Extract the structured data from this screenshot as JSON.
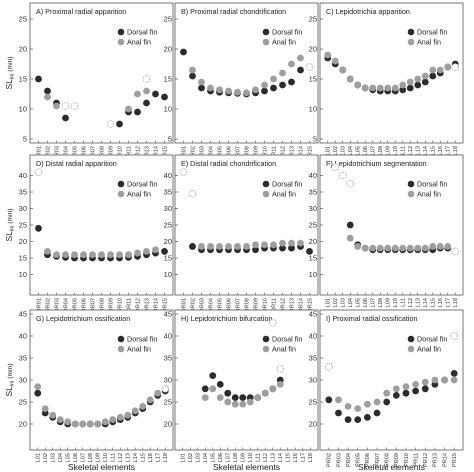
{
  "chart_data": [
    {
      "type": "scatter",
      "title": "A) Proximal radial apparition",
      "ylim": [
        5,
        27
      ],
      "yticks": [
        5,
        10,
        15,
        20,
        25
      ],
      "categories": [
        "PR01",
        "PR02",
        "PR03",
        "PR04",
        "PR05",
        "PR06",
        "PR07",
        "PR08",
        "PR09",
        "PR10",
        "PR11",
        "PR12",
        "PR13",
        "PR14",
        "PR15"
      ],
      "legend": [
        "Dorsal fin",
        "Anal fin"
      ],
      "series": [
        {
          "name": "Dorsal fin",
          "values": [
            15,
            13,
            11,
            8.5,
            null,
            null,
            null,
            null,
            null,
            7.5,
            9.5,
            9.5,
            11,
            12.5,
            12
          ]
        },
        {
          "name": "Anal fin",
          "values": [
            null,
            12,
            10.5,
            null,
            null,
            null,
            null,
            null,
            null,
            null,
            10,
            12.5,
            13,
            null,
            null
          ]
        },
        {
          "name": "",
          "values": [
            null,
            null,
            null,
            10.5,
            10.5,
            null,
            null,
            null,
            7.5,
            null,
            null,
            null,
            15,
            null,
            null
          ]
        }
      ]
    },
    {
      "type": "scatter",
      "title": "B) Proximal radial chondrification",
      "ylim": [
        5,
        27
      ],
      "yticks": [
        5,
        10,
        15,
        20,
        25
      ],
      "categories": [
        "PR01",
        "PR02",
        "PR03",
        "PR04",
        "PR05",
        "PR06",
        "PR07",
        "PR08",
        "PR09",
        "PR10",
        "PR11",
        "PR12",
        "PR13",
        "PR14",
        "PR15"
      ],
      "legend": [
        "Dorsal fin",
        "Anal fin"
      ],
      "series": [
        {
          "name": "Dorsal fin",
          "values": [
            19.5,
            15.5,
            13.5,
            13,
            12.8,
            12.7,
            12.6,
            12.5,
            12.7,
            13,
            13.5,
            14,
            14.5,
            16.5,
            null
          ]
        },
        {
          "name": "Anal fin",
          "values": [
            null,
            16.5,
            14.5,
            13.5,
            13.2,
            13,
            12.8,
            12.7,
            13.2,
            14,
            15,
            16,
            17.5,
            18.5,
            null
          ]
        },
        {
          "name": "",
          "values": [
            null,
            null,
            null,
            null,
            null,
            null,
            null,
            null,
            null,
            null,
            null,
            null,
            null,
            null,
            17
          ]
        }
      ]
    },
    {
      "type": "scatter",
      "title": "C) Lepidotrichia apparition",
      "ylim": [
        5,
        27
      ],
      "yticks": [
        5,
        10,
        15,
        20,
        25
      ],
      "categories": [
        "L01",
        "L02",
        "L03",
        "L04",
        "L05",
        "L06",
        "L07",
        "L08",
        "L09",
        "L10",
        "L11",
        "L12",
        "L13",
        "L14",
        "L15",
        "L16",
        "L17",
        "L18"
      ],
      "legend": [
        "Dorsal fin",
        "Anal fin"
      ],
      "series": [
        {
          "name": "Dorsal fin",
          "values": [
            18.5,
            17.5,
            16.5,
            15,
            14,
            13.5,
            13.2,
            13,
            13,
            13,
            13.2,
            13.5,
            14,
            14.5,
            15.5,
            16,
            17,
            17.5
          ]
        },
        {
          "name": "Anal fin",
          "values": [
            19,
            18,
            16.5,
            15,
            14,
            13.5,
            13.5,
            13.5,
            13.5,
            13.5,
            14,
            14.5,
            15,
            15.5,
            16.5,
            16.5,
            17,
            null
          ]
        },
        {
          "name": "",
          "values": [
            null,
            null,
            null,
            null,
            null,
            null,
            null,
            null,
            null,
            null,
            null,
            null,
            null,
            null,
            null,
            null,
            null,
            17
          ]
        }
      ]
    },
    {
      "type": "scatter",
      "title": "D) Distal radial apparition",
      "ylim": [
        5,
        45
      ],
      "yticks": [
        10,
        15,
        20,
        25,
        30,
        35,
        40
      ],
      "categories": [
        "DR01",
        "DR02",
        "DR03",
        "DR04",
        "DR05",
        "DR06",
        "DR07",
        "DR08",
        "DR09",
        "DR10",
        "DR11",
        "DR12",
        "DR13",
        "DR14",
        "DR15"
      ],
      "legend": [
        "Dorsal fin",
        "Anal fin"
      ],
      "series": [
        {
          "name": "Dorsal fin",
          "values": [
            24,
            16,
            15.5,
            15.2,
            15,
            15,
            15,
            15,
            15,
            15,
            15.2,
            15.5,
            16,
            16.5,
            17
          ]
        },
        {
          "name": "Anal fin",
          "values": [
            null,
            17,
            16,
            16,
            16,
            16,
            16,
            16,
            16,
            16,
            16,
            16.5,
            17,
            17.5,
            null
          ]
        },
        {
          "name": "",
          "values": [
            41,
            null,
            null,
            null,
            null,
            null,
            null,
            null,
            null,
            null,
            null,
            null,
            null,
            null,
            null
          ]
        }
      ]
    },
    {
      "type": "scatter",
      "title": "E) Distal radial chondrification",
      "ylim": [
        5,
        45
      ],
      "yticks": [
        10,
        15,
        20,
        25,
        30,
        35,
        40
      ],
      "categories": [
        "DR01",
        "DR02",
        "DR03",
        "DR04",
        "DR05",
        "DR06",
        "DR07",
        "DR08",
        "DR09",
        "DR10",
        "DR11",
        "DR12",
        "DR13",
        "DR14",
        "DR15"
      ],
      "legend": [
        "Dorsal fin",
        "Anal fin"
      ],
      "series": [
        {
          "name": "Dorsal fin",
          "values": [
            null,
            18.5,
            17.5,
            17.5,
            17.5,
            17.5,
            17.5,
            17.5,
            17.5,
            18,
            18,
            18,
            18,
            18.5,
            17
          ]
        },
        {
          "name": "Anal fin",
          "values": [
            null,
            null,
            18.5,
            18.5,
            18.5,
            18.5,
            18.5,
            18.5,
            19,
            19,
            19,
            19.5,
            19.5,
            19.5,
            null
          ]
        },
        {
          "name": "",
          "values": [
            41,
            34.5,
            null,
            null,
            null,
            null,
            null,
            null,
            null,
            null,
            null,
            null,
            null,
            null,
            null
          ]
        }
      ]
    },
    {
      "type": "scatter",
      "title": "F) Lepidotrichium segmentation",
      "ylim": [
        5,
        45
      ],
      "yticks": [
        10,
        15,
        20,
        25,
        30,
        35,
        40
      ],
      "categories": [
        "L01",
        "L02",
        "L03",
        "L04",
        "L05",
        "L06",
        "L07",
        "L08",
        "L09",
        "L10",
        "L11",
        "L12",
        "L13",
        "L14",
        "L15",
        "L16",
        "L17",
        "L18"
      ],
      "legend": [
        "Dorsal fin",
        "Anal fin"
      ],
      "series": [
        {
          "name": "Dorsal fin",
          "values": [
            null,
            null,
            null,
            25,
            19,
            18,
            17.5,
            17.5,
            17.5,
            17.5,
            17.5,
            17.5,
            17.5,
            17.5,
            17.5,
            18,
            18,
            null
          ]
        },
        {
          "name": "Anal fin",
          "values": [
            null,
            null,
            null,
            21,
            18.5,
            18,
            18,
            18,
            18,
            18,
            18,
            18,
            18,
            18,
            18.5,
            18.5,
            18.5,
            null
          ]
        },
        {
          "name": "",
          "values": [
            null,
            42.5,
            40,
            37.5,
            null,
            null,
            null,
            null,
            null,
            null,
            null,
            null,
            null,
            null,
            null,
            null,
            null,
            17
          ]
        }
      ]
    },
    {
      "type": "scatter",
      "title": "G) Lepidotrichium ossification",
      "ylim": [
        15,
        45
      ],
      "yticks": [
        20,
        25,
        30,
        35,
        40,
        45
      ],
      "categories": [
        "L01",
        "L02",
        "L03",
        "L04",
        "L05",
        "L06",
        "L07",
        "L08",
        "L09",
        "L10",
        "L11",
        "L12",
        "L13",
        "L14",
        "L15",
        "L16",
        "L17",
        "L18"
      ],
      "legend": [
        "Dorsal fin",
        "Anal fin"
      ],
      "series": [
        {
          "name": "Dorsal fin",
          "values": [
            27,
            22.5,
            21.5,
            20.5,
            20,
            20,
            20,
            20,
            20,
            20,
            20.5,
            21,
            21.5,
            22.5,
            23.5,
            25,
            26.5,
            27.5
          ]
        },
        {
          "name": "Anal fin",
          "values": [
            28.5,
            23.5,
            22,
            21,
            20.5,
            20,
            20,
            20,
            20,
            20.5,
            21,
            21.5,
            22,
            23,
            24,
            25.5,
            27,
            null
          ]
        },
        {
          "name": "",
          "values": [
            null,
            null,
            null,
            null,
            null,
            null,
            null,
            null,
            null,
            null,
            null,
            null,
            null,
            null,
            null,
            null,
            null,
            28
          ]
        }
      ]
    },
    {
      "type": "scatter",
      "title": "H) Lepidotrichium bifurcation",
      "ylim": [
        15,
        45
      ],
      "yticks": [
        20,
        25,
        30,
        35,
        40,
        45
      ],
      "categories": [
        "L01",
        "L02",
        "L03",
        "L04",
        "L05",
        "L06",
        "L07",
        "L08",
        "L09",
        "L10",
        "L11",
        "L12",
        "L13",
        "L14",
        "L15",
        "L16",
        "L17",
        "L18"
      ],
      "legend": [
        "Dorsal fin",
        "Anal fin"
      ],
      "series": [
        {
          "name": "Dorsal fin",
          "values": [
            null,
            null,
            null,
            28,
            31,
            29,
            27,
            26,
            26,
            26,
            26,
            27,
            28,
            30,
            null,
            null,
            null,
            null
          ]
        },
        {
          "name": "Anal fin",
          "values": [
            null,
            null,
            null,
            26,
            28,
            26,
            25,
            24.5,
            24.5,
            25,
            26,
            27,
            28,
            29,
            null,
            null,
            null,
            null
          ]
        },
        {
          "name": "",
          "values": [
            null,
            null,
            null,
            null,
            null,
            null,
            null,
            null,
            null,
            null,
            null,
            null,
            43,
            32.5,
            null,
            null,
            null,
            null
          ]
        }
      ]
    },
    {
      "type": "scatter",
      "title": "I) Proximal radial ossification",
      "ylim": [
        15,
        45
      ],
      "yticks": [
        20,
        25,
        30,
        35,
        40,
        45
      ],
      "categories": [
        "PR02",
        "PR03",
        "PR04",
        "PR05",
        "PR06",
        "PR07",
        "PR08",
        "PR09",
        "PR10",
        "PR11",
        "PR12",
        "PR13",
        "PR14",
        "PR15"
      ],
      "legend": [
        "Dorsal fin",
        "Anal fin"
      ],
      "series": [
        {
          "name": "Dorsal fin",
          "values": [
            25.5,
            22.5,
            21,
            21,
            21.5,
            22.5,
            25,
            26.5,
            27,
            27.5,
            28,
            29,
            30,
            31.5
          ]
        },
        {
          "name": "Anal fin",
          "values": [
            null,
            25.5,
            24,
            23.5,
            24.5,
            25,
            27,
            28,
            28.5,
            29,
            29.5,
            30,
            30,
            30
          ]
        },
        {
          "name": "",
          "values": [
            33,
            null,
            null,
            null,
            null,
            null,
            null,
            null,
            null,
            null,
            null,
            null,
            null,
            40
          ]
        }
      ]
    }
  ],
  "ylabel": "SL",
  "ylabel_sub": "ini",
  "ylabel_unit": "(mm)",
  "xlabel": "Skeletal elements",
  "colors": {
    "dorsal": "#2b2b2b",
    "anal": "#9e9e9e",
    "open_stroke": "#9a9a9a"
  }
}
